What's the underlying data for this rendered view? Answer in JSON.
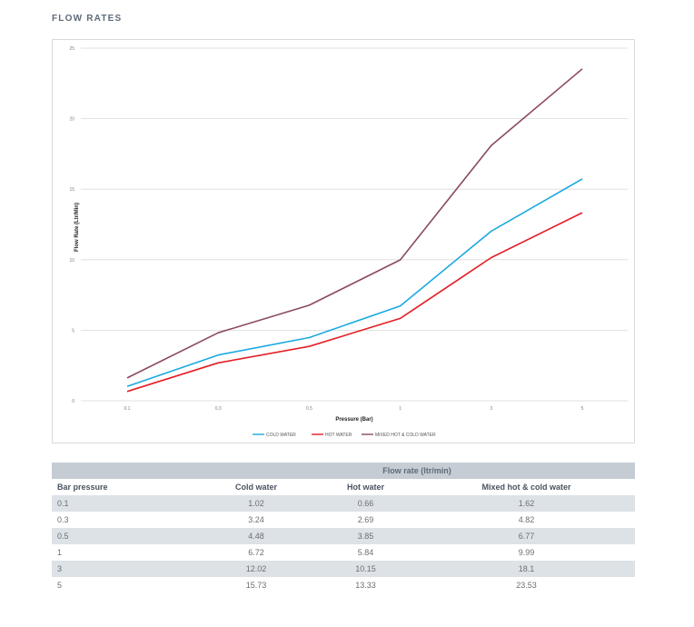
{
  "page": {
    "heading": "FLOW RATES"
  },
  "chart_data": {
    "type": "line",
    "categories": [
      "0.1",
      "0.3",
      "0.5",
      "1",
      "3",
      "5"
    ],
    "xlabel": "Pressure (Bar)",
    "ylabel": "Flow Rate (Ltr/Min)",
    "ylim": [
      0,
      25
    ],
    "yticks": [
      0,
      5,
      10,
      15,
      20,
      25
    ],
    "grid": true,
    "legend_position": "bottom",
    "series": [
      {
        "name": "COLD WATER",
        "color": "#1ba9e0",
        "values": [
          1.02,
          3.24,
          4.48,
          6.72,
          12.02,
          15.73
        ]
      },
      {
        "name": "HOT WATER",
        "color": "#e31e24",
        "values": [
          0.66,
          2.69,
          3.85,
          5.84,
          10.15,
          13.33
        ]
      },
      {
        "name": "MIXED HOT & COLD WATER",
        "color": "#8a4a64",
        "values": [
          1.62,
          4.82,
          6.77,
          9.99,
          18.1,
          23.53
        ]
      }
    ]
  },
  "table": {
    "group_header": "Flow rate (ltr/min)",
    "columns": [
      "Bar pressure",
      "Cold water",
      "Hot water",
      "Mixed hot & cold water"
    ],
    "rows": [
      [
        "0.1",
        "1.02",
        "0.66",
        "1.62"
      ],
      [
        "0.3",
        "3.24",
        "2.69",
        "4.82"
      ],
      [
        "0.5",
        "4.48",
        "3.85",
        "6.77"
      ],
      [
        "1",
        "6.72",
        "5.84",
        "9.99"
      ],
      [
        "3",
        "12.02",
        "10.15",
        "18.1"
      ],
      [
        "5",
        "15.73",
        "13.33",
        "23.53"
      ]
    ]
  }
}
